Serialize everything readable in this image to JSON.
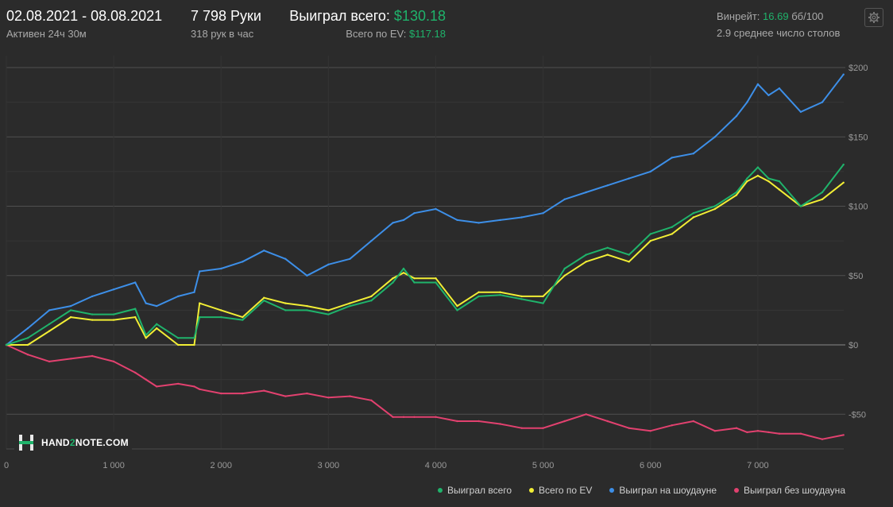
{
  "header": {
    "date_range": "02.08.2021 - 08.08.2021",
    "active_time": "Активен 24ч 30м",
    "hands": "7 798 Руки",
    "hands_per_hour": "318 рук в час",
    "won_total_label": "Выиграл всего:",
    "won_total_value": "$130.18",
    "ev_total_label": "Всего по EV:",
    "ev_total_value": "$117.18",
    "winrate_label": "Винрейт:",
    "winrate_value": "16.69",
    "winrate_unit": "бб/100",
    "avg_tables": "2.9 среднее число столов",
    "settings_icon": "gear-icon"
  },
  "logo": {
    "text_pre": "HAND",
    "text_mid": "2",
    "text_post": "NOTE.COM"
  },
  "colors": {
    "background": "#2b2b2b",
    "grid": "#555555",
    "won": "#1fb36b",
    "ev": "#f2ee35",
    "showdown": "#3d8fe8",
    "non_showdown": "#e2416f"
  },
  "chart_data": {
    "type": "line",
    "title": "",
    "xlabel": "",
    "ylabel": "",
    "xlim": [
      0,
      7800
    ],
    "ylim": [
      -75,
      215
    ],
    "x_ticks": [
      0,
      1000,
      2000,
      3000,
      4000,
      5000,
      6000,
      7000
    ],
    "x_tick_labels": [
      "0",
      "1 000",
      "2 000",
      "3 000",
      "4 000",
      "5 000",
      "6 000",
      "7 000"
    ],
    "y_ticks": [
      200,
      150,
      100,
      50,
      0,
      -50
    ],
    "y_tick_labels": [
      "$200",
      "$150",
      "$100",
      "$50",
      "$0",
      "-$50"
    ],
    "grid": true,
    "legend_position": "bottom-right",
    "x": [
      0,
      200,
      400,
      600,
      800,
      1000,
      1200,
      1300,
      1400,
      1600,
      1750,
      1800,
      2000,
      2200,
      2400,
      2600,
      2800,
      3000,
      3200,
      3400,
      3600,
      3700,
      3800,
      4000,
      4200,
      4400,
      4600,
      4800,
      5000,
      5200,
      5400,
      5600,
      5800,
      6000,
      6200,
      6400,
      6600,
      6800,
      6900,
      7000,
      7100,
      7200,
      7400,
      7600,
      7798
    ],
    "series": [
      {
        "name": "Выиграл всего",
        "color_key": "won",
        "values": [
          0,
          5,
          15,
          25,
          22,
          22,
          26,
          7,
          15,
          5,
          5,
          20,
          20,
          18,
          32,
          25,
          25,
          22,
          28,
          32,
          45,
          55,
          45,
          45,
          25,
          35,
          36,
          33,
          30,
          55,
          65,
          70,
          65,
          80,
          85,
          95,
          100,
          110,
          120,
          128,
          120,
          118,
          100,
          110,
          130
        ]
      },
      {
        "name": "Всего по EV",
        "color_key": "ev",
        "values": [
          0,
          0,
          10,
          20,
          18,
          18,
          20,
          5,
          12,
          0,
          0,
          30,
          25,
          20,
          34,
          30,
          28,
          25,
          30,
          35,
          48,
          52,
          48,
          48,
          28,
          38,
          38,
          35,
          35,
          50,
          60,
          65,
          60,
          75,
          80,
          92,
          98,
          108,
          118,
          122,
          118,
          112,
          100,
          105,
          117
        ]
      },
      {
        "name": "Выиграл на шоудауне",
        "color_key": "showdown",
        "values": [
          0,
          12,
          25,
          28,
          35,
          40,
          45,
          30,
          28,
          35,
          38,
          53,
          55,
          60,
          68,
          62,
          50,
          58,
          62,
          75,
          88,
          90,
          95,
          98,
          90,
          88,
          90,
          92,
          95,
          105,
          110,
          115,
          120,
          125,
          135,
          138,
          150,
          165,
          175,
          188,
          180,
          185,
          168,
          175,
          195
        ]
      },
      {
        "name": "Выиграл без шоудауна",
        "color_key": "non_showdown",
        "values": [
          0,
          -7,
          -12,
          -10,
          -8,
          -12,
          -20,
          -25,
          -30,
          -28,
          -30,
          -32,
          -35,
          -35,
          -33,
          -37,
          -35,
          -38,
          -37,
          -40,
          -52,
          -52,
          -52,
          -52,
          -55,
          -55,
          -57,
          -60,
          -60,
          -55,
          -50,
          -55,
          -60,
          -62,
          -58,
          -55,
          -62,
          -60,
          -63,
          -62,
          -63,
          -64,
          -64,
          -68,
          -65
        ]
      }
    ]
  }
}
